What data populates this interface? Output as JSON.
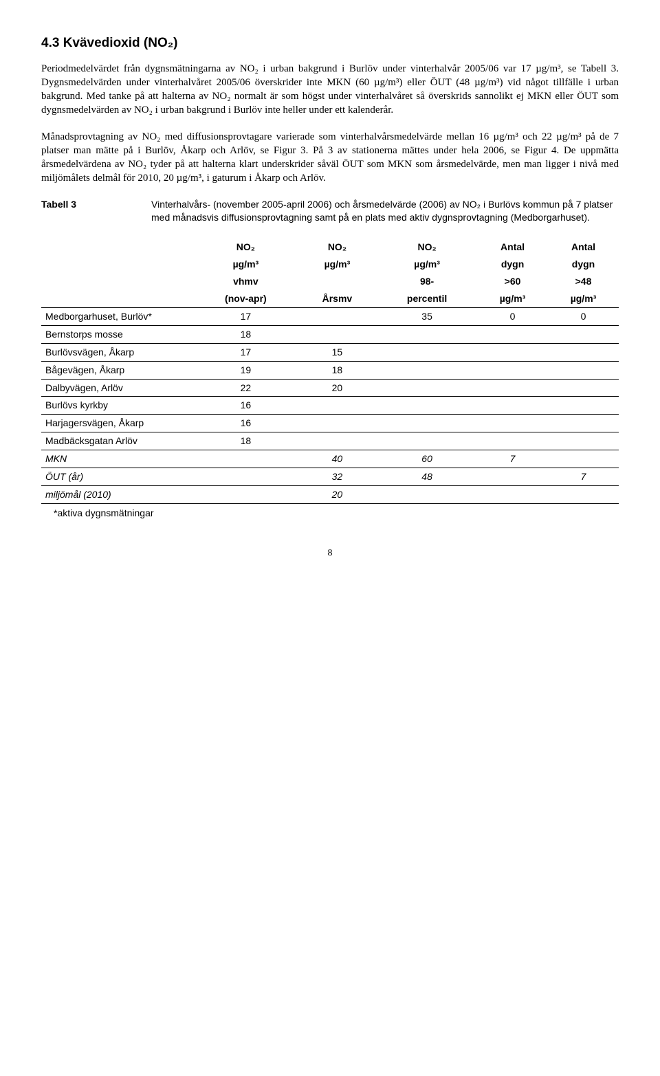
{
  "heading": "4.3 Kvävedioxid (NO₂)",
  "para1": "Periodmedelvärdet från dygnsmätningarna av NO₂ i urban bakgrund i Burlöv under vinterhalvår 2005/06 var 17 µg/m³, se Tabell 3. Dygnsmedelvärden under vinterhalvåret 2005/06 överskrider inte MKN (60 µg/m³) eller ÖUT (48 µg/m³) vid något tillfälle i urban bakgrund. Med tanke på att halterna av NO₂ normalt är som högst under vinterhalvåret så överskrids sannolikt ej MKN eller ÖUT som dygnsmedelvärden av NO₂ i urban bakgrund i Burlöv inte heller under ett kalenderår.",
  "para2": "Månadsprovtagning av NO₂ med diffusionsprovtagare varierade som vinterhalvårsmedelvärde mellan 16 µg/m³ och 22 µg/m³ på de 7 platser man mätte på i Burlöv, Åkarp och Arlöv, se Figur 3. På 3 av stationerna mättes under hela 2006, se Figur 4. De uppmätta årsmedelvärdena av NO₂ tyder på att halterna klart underskrider såväl ÖUT som MKN som årsmedelvärde, men man ligger i nivå med miljömålets delmål för 2010, 20 µg/m³, i gaturum i Åkarp och Arlöv.",
  "tabell_label": "Tabell 3",
  "tabell_caption": "Vinterhalvårs- (november 2005-april 2006) och årsmedelvärde (2006) av NO₂ i Burlövs kommun på 7 platser med månadsvis diffusionsprovtagning samt på en plats med aktiv dygnsprovtagning (Medborgarhuset).",
  "table": {
    "head_rows": [
      [
        "",
        "NO₂",
        "NO₂",
        "NO₂",
        "Antal",
        "Antal"
      ],
      [
        "",
        "µg/m³",
        "µg/m³",
        "µg/m³",
        "dygn",
        "dygn"
      ],
      [
        "",
        "vhmv",
        "",
        "98-",
        ">60",
        ">48"
      ],
      [
        "",
        "(nov-apr)",
        "Årsmv",
        "percentil",
        "µg/m³",
        "µg/m³"
      ]
    ],
    "rows": [
      {
        "label": "Medborgarhuset, Burlöv*",
        "c": [
          "17",
          "",
          "35",
          "0",
          "0"
        ],
        "italic": false
      },
      {
        "label": "Bernstorps mosse",
        "c": [
          "18",
          "",
          "",
          "",
          ""
        ],
        "italic": false
      },
      {
        "label": "Burlövsvägen, Åkarp",
        "c": [
          "17",
          "15",
          "",
          "",
          ""
        ],
        "italic": false
      },
      {
        "label": "Bågevägen, Åkarp",
        "c": [
          "19",
          "18",
          "",
          "",
          ""
        ],
        "italic": false
      },
      {
        "label": "Dalbyvägen,  Arlöv",
        "c": [
          "22",
          "20",
          "",
          "",
          ""
        ],
        "italic": false
      },
      {
        "label": "Burlövs kyrkby",
        "c": [
          "16",
          "",
          "",
          "",
          ""
        ],
        "italic": false
      },
      {
        "label": "Harjagersvägen, Åkarp",
        "c": [
          "16",
          "",
          "",
          "",
          ""
        ],
        "italic": false
      },
      {
        "label": "Madbäcksgatan Arlöv",
        "c": [
          "18",
          "",
          "",
          "",
          ""
        ],
        "italic": false
      },
      {
        "label": "MKN",
        "c": [
          "",
          "40",
          "60",
          "7",
          ""
        ],
        "italic": true
      },
      {
        "label": "ÖUT (år)",
        "c": [
          "",
          "32",
          "48",
          "",
          "7"
        ],
        "italic": true
      },
      {
        "label": "miljömål (2010)",
        "c": [
          "",
          "20",
          "",
          "",
          ""
        ],
        "italic": true
      }
    ],
    "col_count": 6
  },
  "footnote": "*aktiva dygnsmätningar",
  "page_number": "8"
}
